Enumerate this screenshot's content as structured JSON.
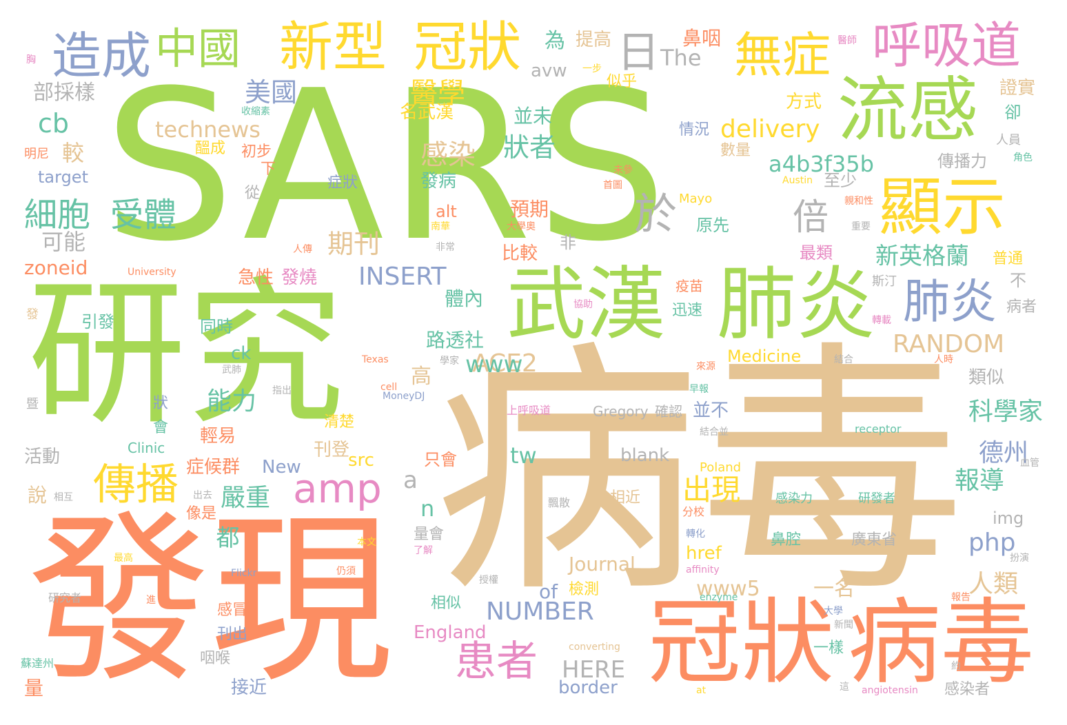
{
  "colors": {
    "green": "#a6d854",
    "tan": "#e5c494",
    "orange": "#fc8d62",
    "blue": "#8da0cb",
    "pink": "#e78ac3",
    "yellow": "#ffd92f",
    "teal": "#66c2a5",
    "gray": "#b3b3b3"
  },
  "words": [
    {
      "text": "SARS",
      "color": "green"
    },
    {
      "text": "病毒",
      "color": "tan"
    },
    {
      "text": "研究",
      "color": "green"
    },
    {
      "text": "發現",
      "color": "orange"
    },
    {
      "text": "冠狀",
      "color": "orange"
    },
    {
      "text": "病毒",
      "color": "orange"
    },
    {
      "text": "武漢",
      "color": "green"
    },
    {
      "text": "肺炎",
      "color": "green"
    },
    {
      "text": "流感",
      "color": "green"
    },
    {
      "text": "顯示",
      "color": "yellow"
    },
    {
      "text": "新型",
      "color": "yellow"
    },
    {
      "text": "冠狀",
      "color": "yellow"
    },
    {
      "text": "造成",
      "color": "blue"
    },
    {
      "text": "中國",
      "color": "green"
    },
    {
      "text": "日",
      "color": "gray"
    },
    {
      "text": "無症",
      "color": "yellow"
    },
    {
      "text": "呼吸道",
      "color": "pink"
    },
    {
      "text": "肺炎",
      "color": "blue"
    },
    {
      "text": "於",
      "color": "gray"
    },
    {
      "text": "倍",
      "color": "gray"
    },
    {
      "text": "傳播",
      "color": "yellow"
    },
    {
      "text": "amp",
      "color": "pink"
    },
    {
      "text": "患者",
      "color": "pink"
    },
    {
      "text": "細胞",
      "color": "teal"
    },
    {
      "text": "受體",
      "color": "teal"
    },
    {
      "text": "美國",
      "color": "blue"
    },
    {
      "text": "醫學",
      "color": "yellow"
    },
    {
      "text": "technews",
      "color": "tan"
    },
    {
      "text": "delivery",
      "color": "yellow"
    },
    {
      "text": "a4b3f35b",
      "color": "teal"
    },
    {
      "text": "感染",
      "color": "tan"
    },
    {
      "text": "狀者",
      "color": "teal"
    },
    {
      "text": "cb",
      "color": "teal"
    },
    {
      "text": "較",
      "color": "tan"
    },
    {
      "text": "期刊",
      "color": "tan"
    },
    {
      "text": "INSERT",
      "color": "blue"
    },
    {
      "text": "RANDOM",
      "color": "tan"
    },
    {
      "text": "ACE2",
      "color": "tan"
    },
    {
      "text": "www",
      "color": "teal"
    },
    {
      "text": "新英格蘭",
      "color": "teal"
    },
    {
      "text": "科學家",
      "color": "teal"
    },
    {
      "text": "德州",
      "color": "blue"
    },
    {
      "text": "報導",
      "color": "teal"
    },
    {
      "text": "能力",
      "color": "teal"
    },
    {
      "text": "嚴重",
      "color": "teal"
    },
    {
      "text": "出現",
      "color": "yellow"
    },
    {
      "text": "php",
      "color": "blue"
    },
    {
      "text": "人類",
      "color": "tan"
    },
    {
      "text": "NUMBER",
      "color": "blue"
    },
    {
      "text": "HERE",
      "color": "gray"
    },
    {
      "text": "www5",
      "color": "tan"
    },
    {
      "text": "一名",
      "color": "tan"
    },
    {
      "text": "Journal",
      "color": "tan"
    },
    {
      "text": "of",
      "color": "blue"
    },
    {
      "text": "Medicine",
      "color": "yellow"
    },
    {
      "text": "tw",
      "color": "teal"
    },
    {
      "text": "路透社",
      "color": "teal"
    },
    {
      "text": "體內",
      "color": "teal"
    },
    {
      "text": "都",
      "color": "teal"
    },
    {
      "text": "n",
      "color": "teal"
    },
    {
      "text": "a",
      "color": "gray"
    },
    {
      "text": "zoneid",
      "color": "orange"
    },
    {
      "text": "可能",
      "color": "gray"
    },
    {
      "text": "部採樣",
      "color": "gray"
    },
    {
      "text": "The",
      "color": "gray"
    },
    {
      "text": "avw",
      "color": "gray"
    },
    {
      "text": "為",
      "color": "teal"
    },
    {
      "text": "提高",
      "color": "tan"
    },
    {
      "text": "鼻咽",
      "color": "orange"
    },
    {
      "text": "並未",
      "color": "teal"
    },
    {
      "text": "方式",
      "color": "yellow"
    },
    {
      "text": "證實",
      "color": "tan"
    },
    {
      "text": "卻",
      "color": "teal"
    },
    {
      "text": "情況",
      "color": "blue"
    },
    {
      "text": "數量",
      "color": "tan"
    },
    {
      "text": "傳播力",
      "color": "gray"
    },
    {
      "text": "至少",
      "color": "gray"
    },
    {
      "text": "原先",
      "color": "teal"
    },
    {
      "text": "發病",
      "color": "teal"
    },
    {
      "text": "預期",
      "color": "orange"
    },
    {
      "text": "比較",
      "color": "orange"
    },
    {
      "text": "名武漢",
      "color": "yellow"
    },
    {
      "text": "醞成",
      "color": "yellow"
    },
    {
      "text": "初步",
      "color": "orange"
    },
    {
      "text": "症狀",
      "color": "blue"
    },
    {
      "text": "target",
      "color": "blue"
    },
    {
      "text": "急性",
      "color": "orange"
    },
    {
      "text": "發燒",
      "color": "pink"
    },
    {
      "text": "引發",
      "color": "teal"
    },
    {
      "text": "同時",
      "color": "teal"
    },
    {
      "text": "最類",
      "color": "pink"
    },
    {
      "text": "普通",
      "color": "yellow"
    },
    {
      "text": "類似",
      "color": "gray"
    },
    {
      "text": "高",
      "color": "tan"
    },
    {
      "text": "ck",
      "color": "teal"
    },
    {
      "text": "輕易",
      "color": "orange"
    },
    {
      "text": "症候群",
      "color": "orange"
    },
    {
      "text": "New",
      "color": "blue"
    },
    {
      "text": "刊登",
      "color": "tan"
    },
    {
      "text": "src",
      "color": "yellow"
    },
    {
      "text": "清楚",
      "color": "yellow"
    },
    {
      "text": "只會",
      "color": "orange"
    },
    {
      "text": "並不",
      "color": "blue"
    },
    {
      "text": "blank",
      "color": "gray"
    },
    {
      "text": "Poland",
      "color": "yellow"
    },
    {
      "text": "Gregory",
      "color": "gray"
    },
    {
      "text": "確認",
      "color": "gray"
    },
    {
      "text": "相近",
      "color": "tan"
    },
    {
      "text": "href",
      "color": "yellow"
    },
    {
      "text": "鼻腔",
      "color": "teal"
    },
    {
      "text": "廣東省",
      "color": "gray"
    },
    {
      "text": "img",
      "color": "gray"
    },
    {
      "text": "檢測",
      "color": "yellow"
    },
    {
      "text": "相似",
      "color": "teal"
    },
    {
      "text": "England",
      "color": "pink"
    },
    {
      "text": "一樣",
      "color": "teal"
    },
    {
      "text": "感冒",
      "color": "orange"
    },
    {
      "text": "刊出",
      "color": "blue"
    },
    {
      "text": "咽喉",
      "color": "gray"
    },
    {
      "text": "接近",
      "color": "blue"
    },
    {
      "text": "border",
      "color": "blue"
    },
    {
      "text": "量",
      "color": "orange"
    },
    {
      "text": "感染者",
      "color": "gray"
    },
    {
      "text": "說",
      "color": "tan"
    },
    {
      "text": "活動",
      "color": "gray"
    },
    {
      "text": "像是",
      "color": "orange"
    },
    {
      "text": "量會",
      "color": "gray"
    },
    {
      "text": "alt",
      "color": "orange"
    },
    {
      "text": "非",
      "color": "gray"
    },
    {
      "text": "疫苗",
      "color": "orange"
    },
    {
      "text": "迅速",
      "color": "teal"
    },
    {
      "text": "斯汀",
      "color": "gray"
    },
    {
      "text": "不",
      "color": "gray"
    },
    {
      "text": "病者",
      "color": "gray"
    },
    {
      "text": "似乎",
      "color": "yellow"
    },
    {
      "text": "下",
      "color": "orange"
    },
    {
      "text": "從",
      "color": "gray"
    },
    {
      "text": "明尼",
      "color": "orange"
    },
    {
      "text": "人員",
      "color": "gray"
    },
    {
      "text": "Mayo",
      "color": "yellow"
    },
    {
      "text": "Clinic",
      "color": "teal"
    },
    {
      "text": "會",
      "color": "teal"
    },
    {
      "text": "狀",
      "color": "blue"
    },
    {
      "text": "研發者",
      "color": "teal"
    },
    {
      "text": "感染力",
      "color": "teal"
    },
    {
      "text": "receptor",
      "color": "teal"
    },
    {
      "text": "分校",
      "color": "orange"
    },
    {
      "text": "Austin",
      "color": "yellow"
    },
    {
      "text": "University",
      "color": "orange"
    },
    {
      "text": "一步",
      "color": "yellow"
    },
    {
      "text": "收縮素",
      "color": "teal"
    },
    {
      "text": "醫師",
      "color": "pink"
    },
    {
      "text": "Texas",
      "color": "orange"
    },
    {
      "text": "MoneyDJ",
      "color": "blue"
    },
    {
      "text": "上呼吸道",
      "color": "pink"
    },
    {
      "text": "affinity",
      "color": "pink"
    },
    {
      "text": "enzyme",
      "color": "teal"
    },
    {
      "text": "angiotensin",
      "color": "pink"
    },
    {
      "text": "converting",
      "color": "tan"
    },
    {
      "text": "Flickr",
      "color": "blue"
    },
    {
      "text": "at",
      "color": "yellow"
    },
    {
      "text": "cell",
      "color": "orange"
    },
    {
      "text": "研究者",
      "color": "gray"
    },
    {
      "text": "本文",
      "color": "yellow"
    },
    {
      "text": "蘇達州",
      "color": "teal"
    },
    {
      "text": "大學奧",
      "color": "orange"
    },
    {
      "text": "南華",
      "color": "yellow"
    },
    {
      "text": "轉載",
      "color": "pink"
    },
    {
      "text": "親和性",
      "color": "orange"
    },
    {
      "text": "來源",
      "color": "orange"
    },
    {
      "text": "結合",
      "color": "gray"
    },
    {
      "text": "結合並",
      "color": "gray"
    },
    {
      "text": "人傳",
      "color": "orange"
    },
    {
      "text": "首圖",
      "color": "orange"
    },
    {
      "text": "未參",
      "color": "orange"
    },
    {
      "text": "角色",
      "color": "teal"
    },
    {
      "text": "重要",
      "color": "gray"
    },
    {
      "text": "約",
      "color": "gray"
    },
    {
      "text": "這",
      "color": "gray"
    },
    {
      "text": "大學",
      "color": "blue"
    },
    {
      "text": "新聞",
      "color": "gray"
    },
    {
      "text": "報告",
      "color": "orange"
    },
    {
      "text": "扮演",
      "color": "gray"
    },
    {
      "text": "血管",
      "color": "gray"
    },
    {
      "text": "人時",
      "color": "orange"
    },
    {
      "text": "早報",
      "color": "teal"
    },
    {
      "text": "轉化",
      "color": "blue"
    },
    {
      "text": "飄散",
      "color": "gray"
    },
    {
      "text": "協助",
      "color": "pink"
    },
    {
      "text": "指出",
      "color": "gray"
    },
    {
      "text": "出去",
      "color": "gray"
    },
    {
      "text": "相互",
      "color": "gray"
    },
    {
      "text": "最高",
      "color": "yellow"
    },
    {
      "text": "仍須",
      "color": "orange"
    },
    {
      "text": "了解",
      "color": "pink"
    },
    {
      "text": "授權",
      "color": "gray"
    },
    {
      "text": "進",
      "color": "orange"
    },
    {
      "text": "非常",
      "color": "gray"
    },
    {
      "text": "發",
      "color": "tan"
    },
    {
      "text": "暨",
      "color": "gray"
    },
    {
      "text": "武肺",
      "color": "gray"
    },
    {
      "text": "學家",
      "color": "gray"
    },
    {
      "text": "胸",
      "color": "pink"
    }
  ]
}
